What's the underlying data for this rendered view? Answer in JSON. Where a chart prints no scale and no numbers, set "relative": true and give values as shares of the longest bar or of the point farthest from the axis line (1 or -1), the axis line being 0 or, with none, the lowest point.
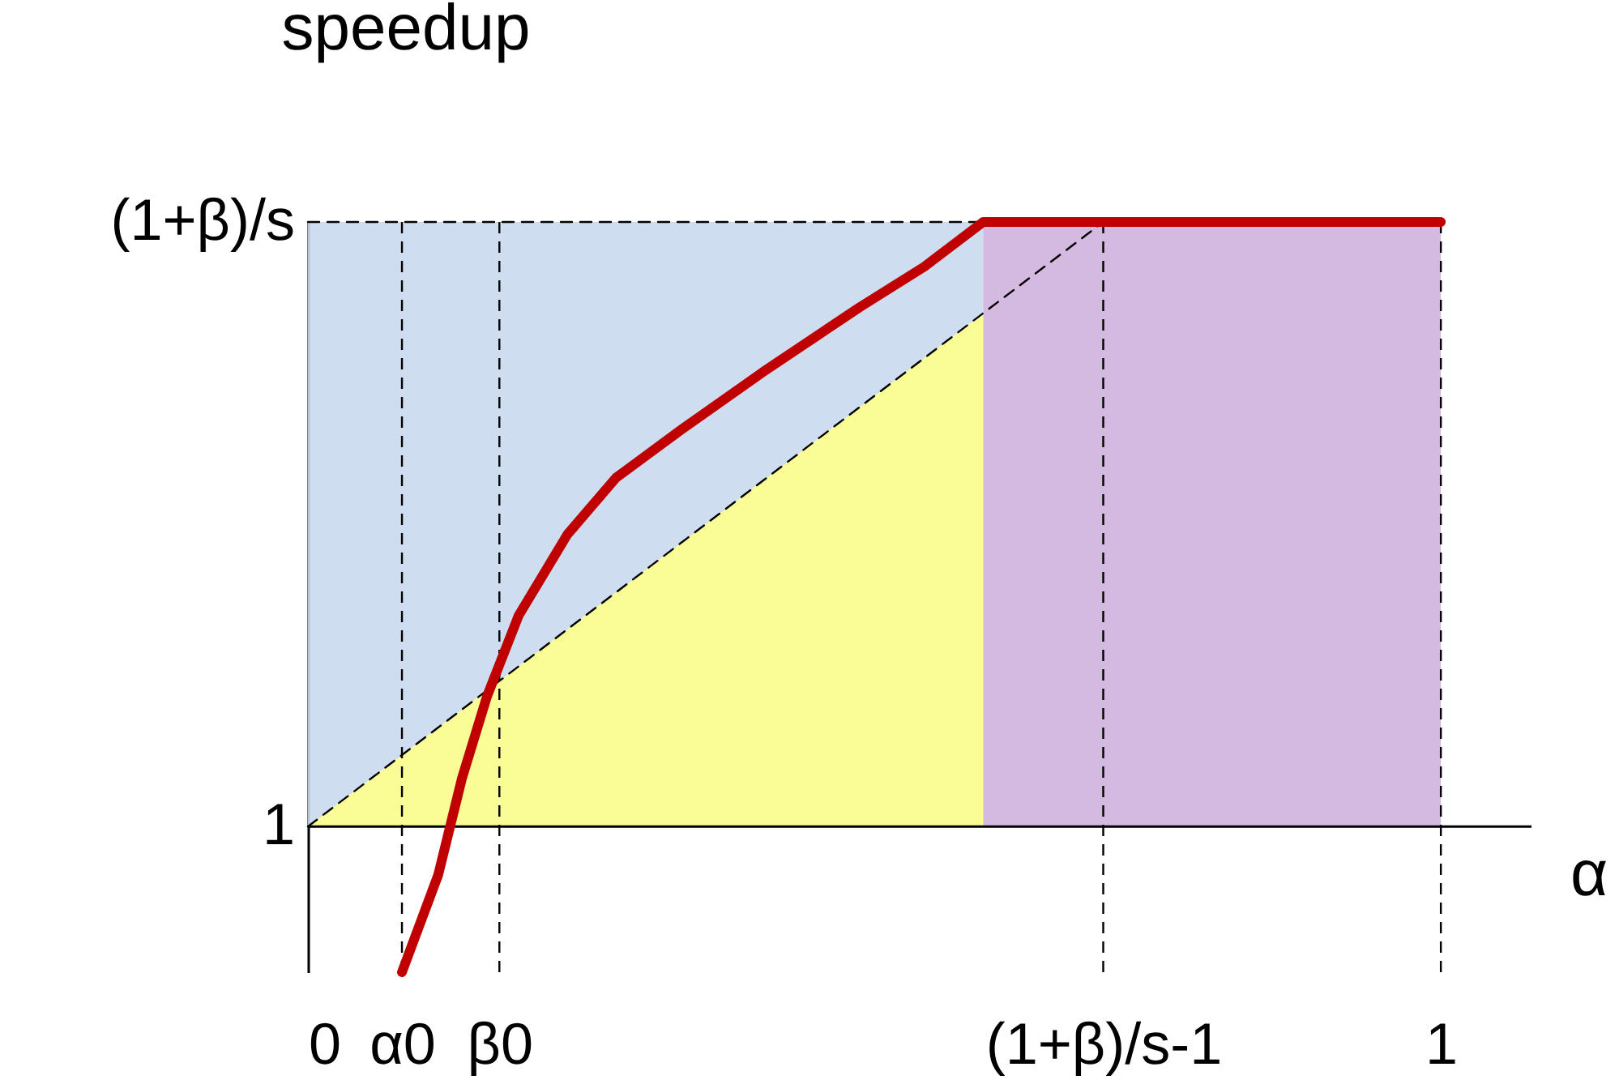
{
  "chart_data": {
    "type": "line",
    "relative": true,
    "xlabel": "α",
    "ylabel": "speedup",
    "xlim": [
      0,
      1.08
    ],
    "xticks": [
      {
        "value": 0,
        "label": "0"
      },
      {
        "value": 0.083,
        "label": "α0"
      },
      {
        "value": 0.169,
        "label": "β0"
      },
      {
        "value": 0.702,
        "label": "(1+β)/s-1"
      },
      {
        "value": 1,
        "label": "1"
      }
    ],
    "grid": false,
    "annotations": [
      {
        "text": "1",
        "x": 0,
        "y": 0
      },
      {
        "text": "(1+β)/s",
        "x": 0,
        "y": 1
      }
    ],
    "bands": [
      {
        "axis": "x",
        "from": 0,
        "to": 0.596,
        "color": "#c9daee"
      },
      {
        "axis": "x",
        "from": 0.596,
        "to": 1,
        "color": "#cfb3dd"
      }
    ],
    "ref_lines": [
      {
        "axis": "y",
        "value": 0,
        "line_style": "solid",
        "color": "#000000"
      },
      {
        "axis": "x",
        "value": 0.083,
        "line_style": "dashed",
        "color": "#000000"
      },
      {
        "axis": "x",
        "value": 0.169,
        "line_style": "dashed",
        "color": "#000000"
      },
      {
        "axis": "x",
        "value": 0.702,
        "line_style": "dashed",
        "color": "#000000"
      },
      {
        "axis": "x",
        "value": 1,
        "line_style": "dashed",
        "color": "#000000"
      }
    ],
    "series": [
      {
        "type": "area",
        "color": "#ffff8c",
        "x": [
          0,
          0.596
        ],
        "values": [
          0,
          0.849
        ]
      },
      {
        "type": "line",
        "color": "#000000",
        "line_style": "dashed",
        "x": [
          0,
          0.702
        ],
        "values": [
          0,
          1
        ]
      },
      {
        "type": "line",
        "color": "#000000",
        "line_style": "dashed",
        "x": [
          0,
          0.596
        ],
        "values": [
          1,
          1
        ]
      },
      {
        "type": "line",
        "color": "#c00000",
        "line_style": "solid",
        "x": [
          0.083,
          0.115,
          0.136,
          0.158,
          0.186,
          0.229,
          0.272,
          0.33,
          0.401,
          0.487,
          0.544,
          0.596,
          1
        ],
        "values": [
          -0.241,
          -0.08,
          0.08,
          0.215,
          0.349,
          0.483,
          0.577,
          0.657,
          0.751,
          0.859,
          0.926,
          1,
          1
        ]
      }
    ]
  }
}
